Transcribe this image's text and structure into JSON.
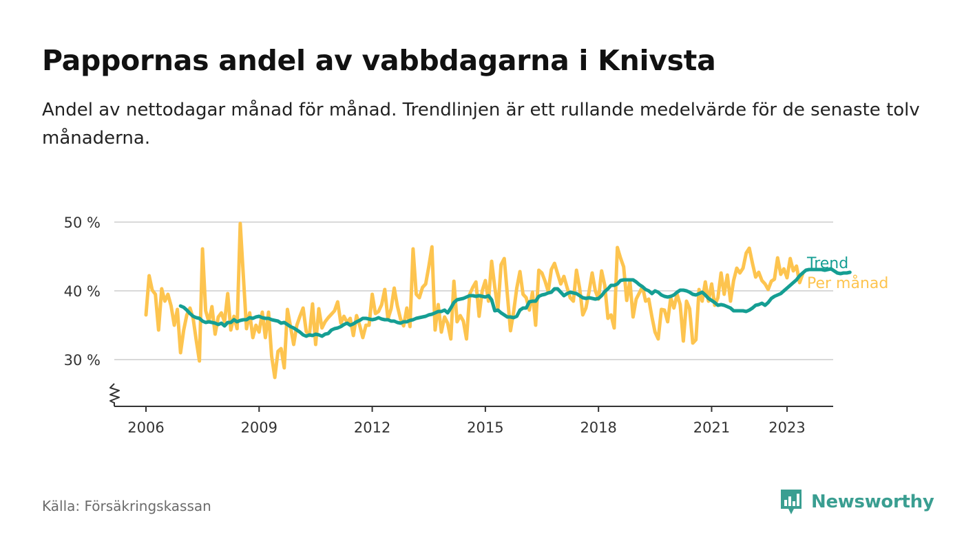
{
  "header": {
    "title": "Pappornas andel av vabbdagarna i Knivsta",
    "subtitle": "Andel av nettodagar månad för månad. Trendlinjen är ett rullande medelvärde för de senaste tolv månaderna."
  },
  "footer": {
    "source": "Källa: Försäkringskassan",
    "brand": "Newsworthy"
  },
  "colors": {
    "trend": "#159e93",
    "monthly": "#fdc44f",
    "grid": "#d9d9d9",
    "axis": "#333333",
    "brand": "#3a9e91"
  },
  "chart_data": {
    "type": "line",
    "title": "Pappornas andel av vabbdagarna i Knivsta",
    "xlabel": "",
    "ylabel": "",
    "xlim": [
      2005.2,
      2024.2
    ],
    "ylim": [
      23,
      50
    ],
    "grid": true,
    "y_ticks": [
      {
        "value": 30,
        "label": "30 %"
      },
      {
        "value": 40,
        "label": "40 %"
      },
      {
        "value": 50,
        "label": "50 %"
      }
    ],
    "x_ticks": [
      {
        "value": 2006,
        "label": "2006"
      },
      {
        "value": 2009,
        "label": "2009"
      },
      {
        "value": 2012,
        "label": "2012"
      },
      {
        "value": 2015,
        "label": "2015"
      },
      {
        "value": 2018,
        "label": "2018"
      },
      {
        "value": 2021,
        "label": "2021"
      },
      {
        "value": 2023,
        "label": "2023"
      }
    ],
    "series": [
      {
        "name": "Per månad",
        "label": "Per månad",
        "color": "#fdc44f",
        "start": 2006.0,
        "step": 0.0833333,
        "values": [
          36.5,
          42.2,
          40.1,
          39.5,
          34.3,
          40.3,
          38.5,
          39.5,
          37.8,
          35.0,
          37.3,
          31.0,
          34.3,
          36.5,
          37.5,
          36.0,
          32.8,
          29.8,
          46.1,
          37.1,
          35.5,
          37.7,
          33.7,
          36.2,
          36.8,
          35.5,
          39.6,
          34.3,
          36.3,
          34.5,
          49.8,
          42.0,
          34.5,
          36.8,
          33.2,
          35.0,
          34.0,
          36.9,
          33.2,
          36.9,
          30.5,
          27.4,
          31.2,
          31.6,
          28.8,
          37.3,
          34.8,
          32.2,
          35.0,
          36.3,
          37.5,
          34.1,
          33.5,
          38.1,
          32.2,
          37.4,
          34.6,
          35.5,
          36.1,
          36.6,
          37.1,
          38.4,
          35.3,
          36.3,
          35.4,
          36.0,
          33.5,
          36.4,
          35.0,
          33.2,
          35.0,
          35.0,
          39.5,
          36.7,
          37.0,
          38.0,
          40.2,
          35.9,
          37.4,
          40.4,
          37.8,
          35.9,
          34.9,
          37.5,
          34.8,
          46.1,
          39.5,
          39.0,
          40.5,
          41.0,
          43.5,
          46.4,
          34.3,
          38.0,
          34.0,
          36.2,
          35.3,
          33.0,
          41.4,
          35.5,
          36.4,
          35.6,
          33.0,
          39.5,
          40.5,
          41.3,
          36.3,
          40.0,
          41.5,
          38.5,
          44.3,
          40.5,
          37.3,
          43.8,
          44.7,
          39.5,
          34.2,
          37.0,
          40.4,
          42.8,
          39.5,
          39.0,
          37.2,
          39.8,
          35.0,
          43.0,
          42.6,
          41.4,
          39.9,
          43.1,
          44.0,
          42.5,
          41.0,
          42.1,
          40.5,
          39.0,
          38.5,
          43.0,
          40.4,
          36.5,
          37.5,
          39.9,
          42.6,
          40.0,
          38.8,
          42.9,
          40.8,
          36.0,
          36.5,
          34.6,
          46.3,
          44.8,
          43.5,
          38.6,
          41.4,
          36.2,
          38.8,
          39.7,
          40.6,
          38.5,
          38.8,
          36.2,
          34.0,
          33.0,
          37.3,
          37.2,
          35.5,
          39.0,
          37.5,
          39.5,
          38.0,
          32.7,
          38.5,
          37.4,
          32.4,
          32.9,
          40.2,
          38.5,
          41.3,
          38.5,
          41.0,
          37.9,
          39.0,
          42.6,
          39.5,
          42.3,
          38.5,
          41.5,
          43.3,
          42.6,
          43.3,
          45.5,
          46.2,
          44.0,
          42.0,
          42.7,
          41.5,
          41.0,
          40.2,
          41.4,
          41.7,
          44.8,
          42.4,
          43.2,
          41.9,
          44.7,
          42.9,
          43.6,
          41.2,
          42.5
        ]
      },
      {
        "name": "Trend",
        "label": "Trend",
        "color": "#159e93",
        "start": 2006.9167,
        "step": 0.0833333,
        "values": [
          37.8,
          37.6,
          37.2,
          36.7,
          36.3,
          36.1,
          36.0,
          35.6,
          35.4,
          35.5,
          35.4,
          35.3,
          35.1,
          35.3,
          34.9,
          35.4,
          35.4,
          35.8,
          35.5,
          35.7,
          35.8,
          35.8,
          36.1,
          36.0,
          36.2,
          36.3,
          36.1,
          36.0,
          36.0,
          35.8,
          35.7,
          35.6,
          35.3,
          35.4,
          35.1,
          34.8,
          34.6,
          34.3,
          34.0,
          33.6,
          33.4,
          33.6,
          33.5,
          33.7,
          33.6,
          33.4,
          33.7,
          33.8,
          34.3,
          34.5,
          34.6,
          34.8,
          35.1,
          35.3,
          35.0,
          35.2,
          35.5,
          35.7,
          36.0,
          36.0,
          35.9,
          35.8,
          35.9,
          36.1,
          35.9,
          35.8,
          35.8,
          35.6,
          35.6,
          35.4,
          35.3,
          35.5,
          35.5,
          35.7,
          35.8,
          36.0,
          36.1,
          36.2,
          36.3,
          36.5,
          36.6,
          36.8,
          37.0,
          37.0,
          37.2,
          36.8,
          37.5,
          38.3,
          38.7,
          38.8,
          38.9,
          39.1,
          39.3,
          39.3,
          39.2,
          39.3,
          39.2,
          39.1,
          39.3,
          38.7,
          37.1,
          37.2,
          36.8,
          36.5,
          36.2,
          36.2,
          36.1,
          36.3,
          37.2,
          37.5,
          37.5,
          38.4,
          38.5,
          38.5,
          39.2,
          39.4,
          39.5,
          39.7,
          39.8,
          40.3,
          40.3,
          39.8,
          39.3,
          39.6,
          39.8,
          39.7,
          39.6,
          39.3,
          39.0,
          38.9,
          39.0,
          38.9,
          38.8,
          38.9,
          39.3,
          39.9,
          40.3,
          40.8,
          40.8,
          41.0,
          41.5,
          41.6,
          41.6,
          41.6,
          41.6,
          41.3,
          40.9,
          40.6,
          40.2,
          40.0,
          39.6,
          40.0,
          39.8,
          39.4,
          39.2,
          39.1,
          39.2,
          39.4,
          39.8,
          40.1,
          40.1,
          40.0,
          39.8,
          39.5,
          39.4,
          39.6,
          39.8,
          39.4,
          38.9,
          38.6,
          38.3,
          37.9,
          38.0,
          37.9,
          37.7,
          37.5,
          37.1,
          37.1,
          37.1,
          37.1,
          37.0,
          37.2,
          37.5,
          37.9,
          38.0,
          38.2,
          37.9,
          38.3,
          38.9,
          39.2,
          39.4,
          39.6,
          40.0,
          40.4,
          40.8,
          41.2,
          41.6,
          42.2,
          42.6,
          43.0,
          43.1,
          43.1,
          43.1,
          43.1,
          43.1,
          43.0,
          43.1,
          43.2,
          42.9,
          42.6,
          42.5,
          42.6,
          42.6,
          42.7
        ]
      }
    ]
  }
}
